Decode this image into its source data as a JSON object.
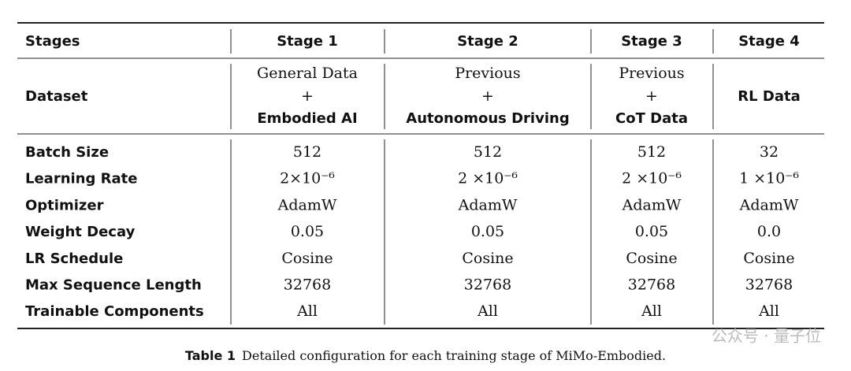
{
  "table": {
    "header": [
      "Stages",
      "Stage 1",
      "Stage 2",
      "Stage 3",
      "Stage 4"
    ],
    "dataset": {
      "label": "Dataset",
      "cells": [
        {
          "top": "General Data",
          "plus": "+",
          "bottom": "Embodied AI"
        },
        {
          "top": "Previous",
          "plus": "+",
          "bottom": "Autonomous Driving"
        },
        {
          "top": "Previous",
          "plus": "+",
          "bottom": "CoT Data"
        },
        {
          "bottom": "RL Data"
        }
      ]
    },
    "rows": [
      [
        "Batch Size",
        "512",
        "512",
        "512",
        "32"
      ],
      [
        "Learning Rate",
        "2×10⁻⁶",
        "2 ×10⁻⁶",
        "2 ×10⁻⁶",
        "1 ×10⁻⁶"
      ],
      [
        "Optimizer",
        "AdamW",
        "AdamW",
        "AdamW",
        "AdamW"
      ],
      [
        "Weight Decay",
        "0.05",
        "0.05",
        "0.05",
        "0.0"
      ],
      [
        "LR Schedule",
        "Cosine",
        "Cosine",
        "Cosine",
        "Cosine"
      ],
      [
        "Max Sequence Length",
        "32768",
        "32768",
        "32768",
        "32768"
      ],
      [
        "Trainable Components",
        "All",
        "All",
        "All",
        "All"
      ]
    ]
  },
  "caption": {
    "label": "Table 1",
    "text": "Detailed configuration for each training stage of MiMo-Embodied."
  },
  "watermark": "公众号 · 量子位"
}
